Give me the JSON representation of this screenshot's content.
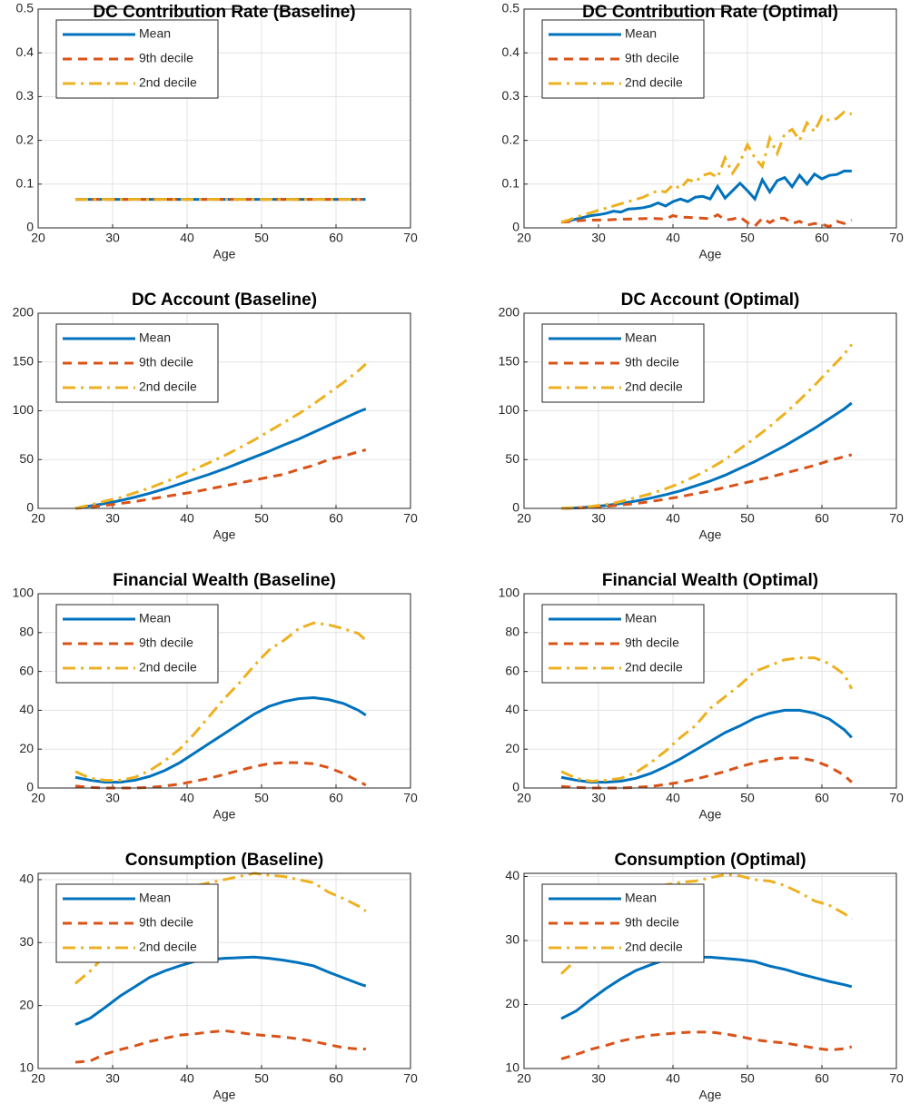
{
  "chart_data": [
    {
      "type": "line",
      "title": "DC Contribution Rate (Baseline)",
      "xlabel": "Age",
      "grid": true,
      "legend": "northwest",
      "x": [
        25,
        27,
        29,
        31,
        33,
        35,
        37,
        39,
        41,
        43,
        45,
        47,
        49,
        51,
        53,
        55,
        57,
        59,
        61,
        63,
        64
      ],
      "xlim": [
        20,
        70
      ],
      "xticks": [
        20,
        30,
        40,
        50,
        60,
        70
      ],
      "ylim": [
        0,
        0.5
      ],
      "yticks": [
        0,
        0.1,
        0.2,
        0.3,
        0.4,
        0.5
      ],
      "series": [
        {
          "name": "Mean",
          "color": "#0072BD",
          "linestyle": "solid",
          "values": [
            0.065,
            0.065,
            0.065,
            0.065,
            0.065,
            0.065,
            0.065,
            0.065,
            0.065,
            0.065,
            0.065,
            0.065,
            0.065,
            0.065,
            0.065,
            0.065,
            0.065,
            0.065,
            0.065,
            0.065,
            0.065
          ]
        },
        {
          "name": "9th decile",
          "color": "#D95319",
          "linestyle": "dashed",
          "values": [
            0.065,
            0.065,
            0.065,
            0.065,
            0.065,
            0.065,
            0.065,
            0.065,
            0.065,
            0.065,
            0.065,
            0.065,
            0.065,
            0.065,
            0.065,
            0.065,
            0.065,
            0.065,
            0.065,
            0.065,
            0.065
          ]
        },
        {
          "name": "2nd decile",
          "color": "#EDB120",
          "linestyle": "dashdot",
          "values": [
            0.065,
            0.065,
            0.065,
            0.065,
            0.065,
            0.065,
            0.065,
            0.065,
            0.065,
            0.065,
            0.065,
            0.065,
            0.065,
            0.065,
            0.065,
            0.065,
            0.065,
            0.065,
            0.065,
            0.065,
            0.065
          ]
        }
      ]
    },
    {
      "type": "line",
      "title": "DC Contribution Rate (Optimal)",
      "xlabel": "Age",
      "grid": true,
      "legend": "northwest",
      "x": [
        25,
        26,
        27,
        28,
        29,
        30,
        31,
        32,
        33,
        34,
        35,
        36,
        37,
        38,
        39,
        40,
        41,
        42,
        43,
        44,
        45,
        46,
        47,
        48,
        49,
        50,
        51,
        52,
        53,
        54,
        55,
        56,
        57,
        58,
        59,
        60,
        61,
        62,
        63,
        64
      ],
      "xlim": [
        20,
        70
      ],
      "xticks": [
        20,
        30,
        40,
        50,
        60,
        70
      ],
      "ylim": [
        0,
        0.5
      ],
      "yticks": [
        0,
        0.1,
        0.2,
        0.3,
        0.4,
        0.5
      ],
      "series": [
        {
          "name": "Mean",
          "color": "#0072BD",
          "linestyle": "solid",
          "values": [
            0.013,
            0.016,
            0.02,
            0.024,
            0.028,
            0.03,
            0.033,
            0.038,
            0.036,
            0.043,
            0.044,
            0.046,
            0.05,
            0.057,
            0.05,
            0.06,
            0.066,
            0.06,
            0.07,
            0.072,
            0.066,
            0.095,
            0.068,
            0.085,
            0.102,
            0.085,
            0.066,
            0.11,
            0.082,
            0.108,
            0.115,
            0.094,
            0.12,
            0.1,
            0.123,
            0.112,
            0.12,
            0.122,
            0.13,
            0.13
          ]
        },
        {
          "name": "9th decile",
          "color": "#D95319",
          "linestyle": "dashed",
          "values": [
            0.013,
            0.014,
            0.016,
            0.017,
            0.018,
            0.018,
            0.018,
            0.019,
            0.02,
            0.02,
            0.021,
            0.021,
            0.022,
            0.021,
            0.02,
            0.028,
            0.024,
            0.024,
            0.023,
            0.022,
            0.021,
            0.03,
            0.018,
            0.02,
            0.025,
            0.012,
            0.004,
            0.022,
            0.012,
            0.022,
            0.022,
            0.01,
            0.015,
            0.006,
            0.01,
            0.008,
            0.003,
            0.015,
            0.01,
            0.018
          ]
        },
        {
          "name": "2nd decile",
          "color": "#EDB120",
          "linestyle": "dashdot",
          "values": [
            0.013,
            0.018,
            0.024,
            0.03,
            0.035,
            0.04,
            0.045,
            0.05,
            0.055,
            0.06,
            0.065,
            0.07,
            0.078,
            0.085,
            0.082,
            0.098,
            0.09,
            0.11,
            0.105,
            0.12,
            0.125,
            0.115,
            0.16,
            0.125,
            0.15,
            0.19,
            0.16,
            0.14,
            0.205,
            0.17,
            0.215,
            0.225,
            0.2,
            0.24,
            0.22,
            0.255,
            0.245,
            0.25,
            0.265,
            0.26
          ]
        }
      ]
    },
    {
      "type": "line",
      "title": "DC Account (Baseline)",
      "xlabel": "Age",
      "grid": true,
      "legend": "northwest",
      "x": [
        25,
        27,
        29,
        31,
        33,
        35,
        37,
        39,
        41,
        43,
        45,
        47,
        49,
        51,
        53,
        55,
        57,
        59,
        61,
        63,
        64
      ],
      "xlim": [
        20,
        70
      ],
      "xticks": [
        20,
        30,
        40,
        50,
        60,
        70
      ],
      "ylim": [
        0,
        200
      ],
      "yticks": [
        0,
        50,
        100,
        150,
        200
      ],
      "series": [
        {
          "name": "Mean",
          "color": "#0072BD",
          "linestyle": "solid",
          "values": [
            0,
            2.5,
            5,
            8,
            11.5,
            15.5,
            20,
            25,
            30,
            35,
            40.5,
            46.5,
            52.5,
            58.5,
            65,
            71,
            78,
            85,
            92,
            99,
            102
          ]
        },
        {
          "name": "9th decile",
          "color": "#D95319",
          "linestyle": "dashed",
          "values": [
            0,
            1.5,
            3,
            5,
            7,
            9.5,
            12,
            14.5,
            17,
            20,
            23,
            26,
            29,
            32,
            35,
            40,
            44,
            50,
            53.5,
            58,
            60
          ]
        },
        {
          "name": "2nd decile",
          "color": "#EDB120",
          "linestyle": "dashdot",
          "values": [
            0,
            3.5,
            7.5,
            11,
            16,
            21,
            27,
            33,
            40,
            47,
            54,
            62,
            70,
            79,
            88,
            97,
            107,
            118,
            129,
            141,
            148
          ]
        }
      ]
    },
    {
      "type": "line",
      "title": "DC Account (Optimal)",
      "xlabel": "Age",
      "grid": true,
      "legend": "northwest",
      "x": [
        25,
        27,
        29,
        31,
        33,
        35,
        37,
        39,
        41,
        43,
        45,
        47,
        49,
        51,
        53,
        55,
        57,
        59,
        61,
        63,
        64
      ],
      "xlim": [
        20,
        70
      ],
      "xticks": [
        20,
        30,
        40,
        50,
        60,
        70
      ],
      "ylim": [
        0,
        200
      ],
      "yticks": [
        0,
        50,
        100,
        150,
        200
      ],
      "series": [
        {
          "name": "Mean",
          "color": "#0072BD",
          "linestyle": "solid",
          "values": [
            0,
            0.5,
            1.5,
            3,
            5,
            7.5,
            10.5,
            14,
            18,
            23,
            28,
            34,
            41,
            48,
            56,
            64,
            73,
            82,
            92,
            102,
            108
          ]
        },
        {
          "name": "9th decile",
          "color": "#D95319",
          "linestyle": "dashed",
          "values": [
            0,
            0.3,
            1,
            2,
            3.5,
            5,
            7,
            9.5,
            12,
            15,
            18,
            21.5,
            25,
            28.5,
            32,
            36,
            40,
            44,
            49,
            53,
            55
          ]
        },
        {
          "name": "2nd decile",
          "color": "#EDB120",
          "linestyle": "dashdot",
          "values": [
            0,
            0.8,
            2,
            4,
            7,
            11,
            15,
            20,
            26,
            33,
            41,
            50,
            61,
            72,
            84,
            97,
            111,
            126,
            142,
            158,
            168
          ]
        }
      ]
    },
    {
      "type": "line",
      "title": "Financial Wealth (Baseline)",
      "xlabel": "Age",
      "grid": true,
      "legend": "northwest",
      "x": [
        25,
        27,
        29,
        31,
        33,
        35,
        37,
        39,
        41,
        43,
        45,
        47,
        49,
        51,
        53,
        55,
        57,
        59,
        61,
        63,
        64
      ],
      "xlim": [
        20,
        70
      ],
      "xticks": [
        20,
        30,
        40,
        50,
        60,
        70
      ],
      "ylim": [
        0,
        100
      ],
      "yticks": [
        0,
        20,
        40,
        60,
        80,
        100
      ],
      "series": [
        {
          "name": "Mean",
          "color": "#0072BD",
          "linestyle": "solid",
          "values": [
            5.5,
            4,
            3,
            3,
            4,
            6,
            9,
            13,
            18,
            23,
            28,
            33,
            38,
            42,
            44.5,
            46,
            46.5,
            45.5,
            43.5,
            40,
            37.5
          ]
        },
        {
          "name": "9th decile",
          "color": "#D95319",
          "linestyle": "dashed",
          "values": [
            1,
            0.3,
            0,
            0,
            0,
            0.3,
            1,
            2,
            3.5,
            5,
            7,
            9,
            11,
            12.5,
            13,
            13,
            12.5,
            10.5,
            7.5,
            3.5,
            1.5
          ]
        },
        {
          "name": "2nd decile",
          "color": "#EDB120",
          "linestyle": "dashdot",
          "values": [
            8.5,
            5,
            4,
            4,
            5.5,
            9,
            14,
            20,
            28,
            37,
            46,
            54,
            63,
            71,
            76,
            82,
            85,
            84,
            82,
            79.5,
            76
          ]
        }
      ]
    },
    {
      "type": "line",
      "title": "Financial Wealth (Optimal)",
      "xlabel": "Age",
      "grid": true,
      "legend": "northwest",
      "x": [
        25,
        27,
        29,
        31,
        33,
        35,
        37,
        39,
        41,
        43,
        45,
        47,
        49,
        51,
        53,
        55,
        57,
        59,
        61,
        63,
        64
      ],
      "xlim": [
        20,
        70
      ],
      "xticks": [
        20,
        30,
        40,
        50,
        60,
        70
      ],
      "ylim": [
        0,
        100
      ],
      "yticks": [
        0,
        20,
        40,
        60,
        80,
        100
      ],
      "series": [
        {
          "name": "Mean",
          "color": "#0072BD",
          "linestyle": "solid",
          "values": [
            5.5,
            4,
            3,
            3,
            3.5,
            5,
            7.5,
            11,
            15,
            19.5,
            24,
            28.5,
            32,
            36,
            38.5,
            40,
            40,
            38.5,
            35.5,
            30,
            26
          ]
        },
        {
          "name": "9th decile",
          "color": "#D95319",
          "linestyle": "dashed",
          "values": [
            0.8,
            0.3,
            0,
            0,
            0,
            0.3,
            0.8,
            1.8,
            3,
            4.5,
            6.5,
            8.5,
            11,
            13,
            14.5,
            15.5,
            15.5,
            14,
            11,
            6.5,
            3
          ]
        },
        {
          "name": "2nd decile",
          "color": "#EDB120",
          "linestyle": "dashdot",
          "values": [
            8.5,
            5,
            3.5,
            4,
            5,
            8,
            13,
            19,
            26,
            32,
            41,
            47,
            53,
            60,
            63,
            66,
            67,
            67,
            64,
            58.5,
            51
          ]
        }
      ]
    },
    {
      "type": "line",
      "title": "Consumption (Baseline)",
      "xlabel": "Age",
      "grid": true,
      "legend": "northwest",
      "x": [
        25,
        27,
        29,
        31,
        33,
        35,
        37,
        39,
        41,
        43,
        45,
        47,
        49,
        51,
        53,
        55,
        57,
        59,
        61,
        63,
        64
      ],
      "xlim": [
        20,
        70
      ],
      "xticks": [
        20,
        30,
        40,
        50,
        60,
        70
      ],
      "ylim": [
        10,
        41
      ],
      "yticks": [
        10,
        20,
        30,
        40
      ],
      "series": [
        {
          "name": "Mean",
          "color": "#0072BD",
          "linestyle": "solid",
          "values": [
            17,
            18,
            19.7,
            21.5,
            23,
            24.5,
            25.5,
            26.3,
            27,
            27.3,
            27.5,
            27.6,
            27.7,
            27.5,
            27.2,
            26.8,
            26.3,
            25.3,
            24.4,
            23.5,
            23.1
          ]
        },
        {
          "name": "9th decile",
          "color": "#D95319",
          "linestyle": "dashed",
          "values": [
            11,
            11.2,
            12.3,
            13,
            13.6,
            14.3,
            14.8,
            15.3,
            15.5,
            15.8,
            16,
            15.7,
            15.4,
            15.2,
            15,
            14.7,
            14.3,
            13.8,
            13.3,
            13.1,
            13.1
          ]
        },
        {
          "name": "2nd decile",
          "color": "#EDB120",
          "linestyle": "dashdot",
          "values": [
            23.5,
            25.5,
            28,
            30.5,
            33,
            35,
            36.5,
            38,
            39,
            39.5,
            40,
            40.5,
            41,
            40.7,
            40.5,
            40,
            39.5,
            38,
            37,
            35.8,
            35
          ]
        }
      ]
    },
    {
      "type": "line",
      "title": "Consumption (Optimal)",
      "xlabel": "Age",
      "grid": true,
      "legend": "northwest",
      "x": [
        25,
        27,
        29,
        31,
        33,
        35,
        37,
        39,
        41,
        43,
        45,
        47,
        49,
        51,
        53,
        55,
        57,
        59,
        61,
        63,
        64
      ],
      "xlim": [
        20,
        70
      ],
      "xticks": [
        20,
        30,
        40,
        50,
        60,
        70
      ],
      "ylim": [
        10,
        40.5
      ],
      "yticks": [
        10,
        20,
        30,
        40
      ],
      "series": [
        {
          "name": "Mean",
          "color": "#0072BD",
          "linestyle": "solid",
          "values": [
            17.8,
            19,
            20.8,
            22.5,
            24,
            25.3,
            26.2,
            27,
            27.3,
            27.4,
            27.4,
            27.2,
            27,
            26.7,
            26,
            25.5,
            24.8,
            24.2,
            23.6,
            23.1,
            22.8
          ]
        },
        {
          "name": "9th decile",
          "color": "#D95319",
          "linestyle": "dashed",
          "values": [
            11.5,
            12.2,
            13,
            13.6,
            14.3,
            14.8,
            15.2,
            15.4,
            15.6,
            15.7,
            15.7,
            15.4,
            15,
            14.5,
            14.2,
            14,
            13.6,
            13.2,
            12.9,
            13.1,
            13.4
          ]
        },
        {
          "name": "2nd decile",
          "color": "#EDB120",
          "linestyle": "dashdot",
          "values": [
            24.8,
            27,
            29.5,
            31.8,
            34,
            36,
            37.5,
            38.7,
            39.1,
            39.3,
            39.8,
            40.3,
            40.1,
            39.5,
            39.3,
            38.6,
            37.5,
            36.2,
            35.5,
            34.2,
            33.4
          ]
        }
      ]
    }
  ]
}
